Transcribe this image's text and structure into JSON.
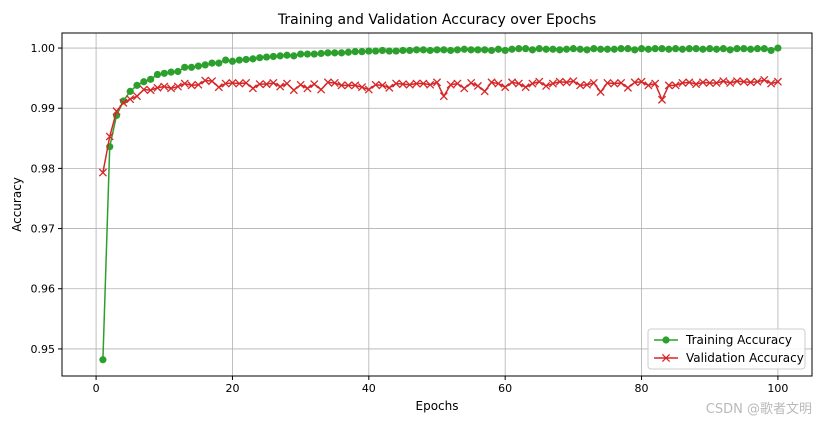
{
  "chart_data": {
    "type": "line",
    "title": "Training and Validation Accuracy over Epochs",
    "xlabel": "Epochs",
    "ylabel": "Accuracy",
    "xlim": [
      -5,
      105
    ],
    "ylim": [
      0.9455,
      1.0025
    ],
    "xticks": [
      0,
      20,
      40,
      60,
      80,
      100
    ],
    "yticks": [
      0.95,
      0.96,
      0.97,
      0.98,
      0.99,
      1.0
    ],
    "xtick_labels": [
      "0",
      "20",
      "40",
      "60",
      "80",
      "100"
    ],
    "ytick_labels": [
      "0.95",
      "0.96",
      "0.97",
      "0.98",
      "0.99",
      "1.00"
    ],
    "grid": true,
    "legend_position": "bottom-right",
    "series": [
      {
        "name": "Training Accuracy",
        "color": "#2ca02c",
        "marker": "circle",
        "x": [
          1,
          2,
          3,
          4,
          5,
          6,
          7,
          8,
          9,
          10,
          11,
          12,
          13,
          14,
          15,
          16,
          17,
          18,
          19,
          20,
          21,
          22,
          23,
          24,
          25,
          26,
          27,
          28,
          29,
          30,
          31,
          32,
          33,
          34,
          35,
          36,
          37,
          38,
          39,
          40,
          41,
          42,
          43,
          44,
          45,
          46,
          47,
          48,
          49,
          50,
          51,
          52,
          53,
          54,
          55,
          56,
          57,
          58,
          59,
          60,
          61,
          62,
          63,
          64,
          65,
          66,
          67,
          68,
          69,
          70,
          71,
          72,
          73,
          74,
          75,
          76,
          77,
          78,
          79,
          80,
          81,
          82,
          83,
          84,
          85,
          86,
          87,
          88,
          89,
          90,
          91,
          92,
          93,
          94,
          95,
          96,
          97,
          98,
          99,
          100
        ],
        "values": [
          0.9482,
          0.9836,
          0.9888,
          0.9912,
          0.9928,
          0.9938,
          0.9944,
          0.9948,
          0.9956,
          0.9958,
          0.996,
          0.9961,
          0.9968,
          0.9968,
          0.997,
          0.9972,
          0.9975,
          0.9975,
          0.998,
          0.9978,
          0.998,
          0.9981,
          0.9982,
          0.9984,
          0.9985,
          0.9986,
          0.9987,
          0.9988,
          0.9987,
          0.999,
          0.999,
          0.999,
          0.9991,
          0.9992,
          0.9992,
          0.9992,
          0.9993,
          0.9994,
          0.9994,
          0.9995,
          0.9995,
          0.9996,
          0.9995,
          0.9995,
          0.9996,
          0.9996,
          0.9997,
          0.9997,
          0.9996,
          0.9997,
          0.9997,
          0.9996,
          0.9997,
          0.9998,
          0.9997,
          0.9997,
          0.9997,
          0.9996,
          0.9998,
          0.9996,
          0.9998,
          0.9999,
          0.9999,
          0.9997,
          0.9999,
          0.9998,
          0.9998,
          0.9997,
          0.9998,
          0.9999,
          0.9998,
          0.9997,
          0.9999,
          0.9998,
          0.9998,
          0.9998,
          0.9999,
          0.9999,
          0.9997,
          0.9999,
          0.9998,
          0.9999,
          0.9999,
          0.9998,
          0.9999,
          0.9998,
          0.9999,
          0.9999,
          0.9998,
          0.9999,
          0.9998,
          0.9999,
          0.9997,
          0.9999,
          0.9999,
          0.9998,
          0.9999,
          0.9999,
          0.9996,
          1.0
        ]
      },
      {
        "name": "Validation Accuracy",
        "color": "#d62728",
        "marker": "x",
        "x": [
          1,
          2,
          3,
          4,
          5,
          6,
          7,
          8,
          9,
          10,
          11,
          12,
          13,
          14,
          15,
          16,
          17,
          18,
          19,
          20,
          21,
          22,
          23,
          24,
          25,
          26,
          27,
          28,
          29,
          30,
          31,
          32,
          33,
          34,
          35,
          36,
          37,
          38,
          39,
          40,
          41,
          42,
          43,
          44,
          45,
          46,
          47,
          48,
          49,
          50,
          51,
          52,
          53,
          54,
          55,
          56,
          57,
          58,
          59,
          60,
          61,
          62,
          63,
          64,
          65,
          66,
          67,
          68,
          69,
          70,
          71,
          72,
          73,
          74,
          75,
          76,
          77,
          78,
          79,
          80,
          81,
          82,
          83,
          84,
          85,
          86,
          87,
          88,
          89,
          90,
          91,
          92,
          93,
          94,
          95,
          96,
          97,
          98,
          99,
          100
        ],
        "values": [
          0.9793,
          0.9853,
          0.9895,
          0.9909,
          0.9915,
          0.992,
          0.9931,
          0.993,
          0.9934,
          0.9936,
          0.9933,
          0.9936,
          0.9941,
          0.9938,
          0.9939,
          0.9946,
          0.9945,
          0.9935,
          0.9941,
          0.9942,
          0.9941,
          0.9942,
          0.9933,
          0.994,
          0.994,
          0.9942,
          0.9936,
          0.9941,
          0.993,
          0.9939,
          0.9933,
          0.994,
          0.9931,
          0.9943,
          0.9942,
          0.9938,
          0.9938,
          0.9938,
          0.9935,
          0.9931,
          0.9939,
          0.9938,
          0.9934,
          0.9941,
          0.994,
          0.9939,
          0.9941,
          0.9941,
          0.9939,
          0.9943,
          0.992,
          0.9939,
          0.9941,
          0.9933,
          0.9942,
          0.9937,
          0.9928,
          0.9943,
          0.9941,
          0.9935,
          0.9943,
          0.9941,
          0.9935,
          0.9941,
          0.9944,
          0.9937,
          0.9941,
          0.9944,
          0.9943,
          0.9945,
          0.9938,
          0.9939,
          0.9942,
          0.9927,
          0.9942,
          0.9941,
          0.9942,
          0.9934,
          0.9943,
          0.9944,
          0.9938,
          0.9941,
          0.9914,
          0.9938,
          0.9938,
          0.9942,
          0.9943,
          0.994,
          0.9943,
          0.9942,
          0.9942,
          0.9945,
          0.9942,
          0.9945,
          0.9944,
          0.9943,
          0.9944,
          0.9947,
          0.9941,
          0.9944
        ]
      }
    ]
  },
  "watermark": "CSDN @歌者文明"
}
